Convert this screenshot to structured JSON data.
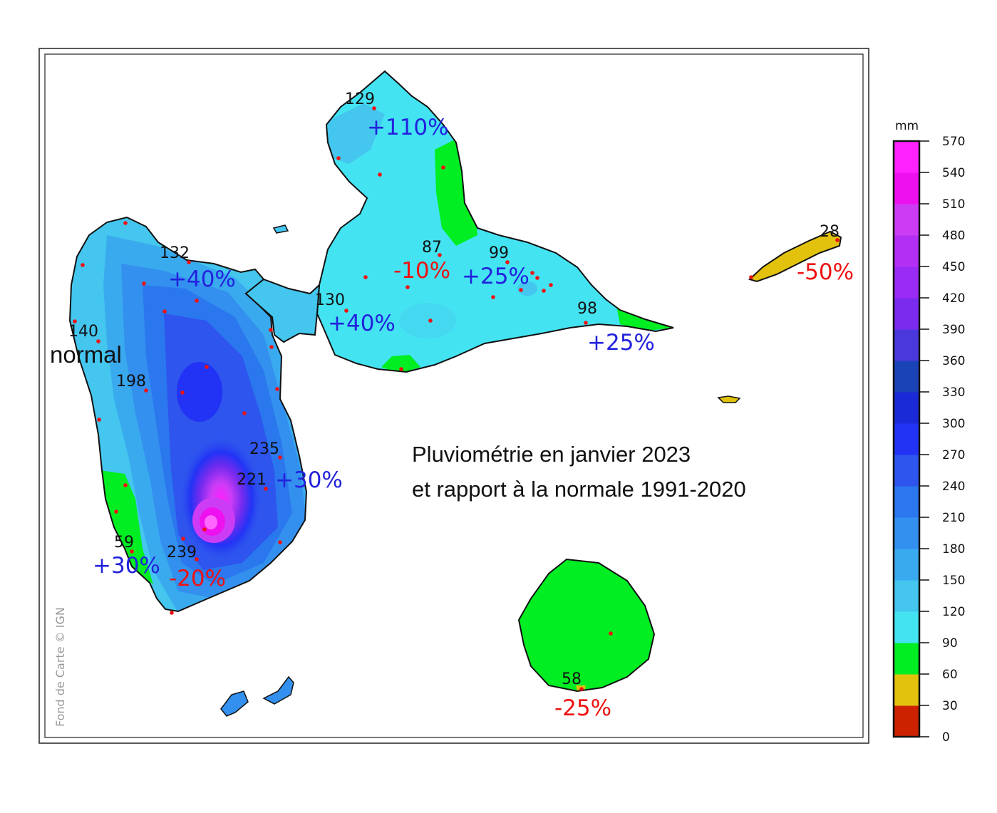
{
  "title": {
    "line1": "Pluviométrie en janvier 2023",
    "line2": "et rapport à la normale 1991-2020"
  },
  "credit": "Fond de Carte © IGN",
  "colorscale": {
    "unit": "mm",
    "ticks": [
      "0",
      "30",
      "60",
      "90",
      "120",
      "150",
      "180",
      "210",
      "240",
      "270",
      "300",
      "330",
      "360",
      "390",
      "420",
      "450",
      "480",
      "510",
      "540",
      "570"
    ],
    "colors": [
      "#cc2200",
      "#e3c20e",
      "#00ee22",
      "#44e3f2",
      "#44c6ef",
      "#3aaaef",
      "#3390ee",
      "#2b77ee",
      "#2e55ee",
      "#2233f5",
      "#1a2ad6",
      "#1a43b8",
      "#4a38dd",
      "#7a2bee",
      "#9a2bf4",
      "#b32ff4",
      "#cc3cf5",
      "#ee11f0",
      "#ff22ff"
    ]
  },
  "stations": [
    {
      "id": "n129",
      "value": "129"
    },
    {
      "id": "n132",
      "value": "132"
    },
    {
      "id": "n140",
      "value": "140"
    },
    {
      "id": "n198",
      "value": "198"
    },
    {
      "id": "n87",
      "value": "87"
    },
    {
      "id": "n99",
      "value": "99"
    },
    {
      "id": "n130",
      "value": "130"
    },
    {
      "id": "n98",
      "value": "98"
    },
    {
      "id": "n28",
      "value": "28"
    },
    {
      "id": "n235",
      "value": "235"
    },
    {
      "id": "n221",
      "value": "221"
    },
    {
      "id": "n59",
      "value": "59"
    },
    {
      "id": "n239",
      "value": "239"
    },
    {
      "id": "n58",
      "value": "58"
    }
  ],
  "anomalies": [
    {
      "id": "a110",
      "text": "+110%",
      "color": "#2222dd"
    },
    {
      "id": "a40a",
      "text": "+40%",
      "color": "#2222dd"
    },
    {
      "id": "a10",
      "text": "-10%",
      "color": "#ee1111"
    },
    {
      "id": "a25a",
      "text": "+25%",
      "color": "#2222dd"
    },
    {
      "id": "a40b",
      "text": "+40%",
      "color": "#2222dd"
    },
    {
      "id": "a25b",
      "text": "+25%",
      "color": "#2222dd"
    },
    {
      "id": "a50",
      "text": "-50%",
      "color": "#ee1111"
    },
    {
      "id": "a30a",
      "text": "+30%",
      "color": "#2222dd"
    },
    {
      "id": "a30b",
      "text": "+30%",
      "color": "#2222dd"
    },
    {
      "id": "a20",
      "text": "-20%",
      "color": "#ee1111"
    },
    {
      "id": "a25c",
      "text": "-25%",
      "color": "#ee1111"
    }
  ],
  "normal_label": "normal"
}
